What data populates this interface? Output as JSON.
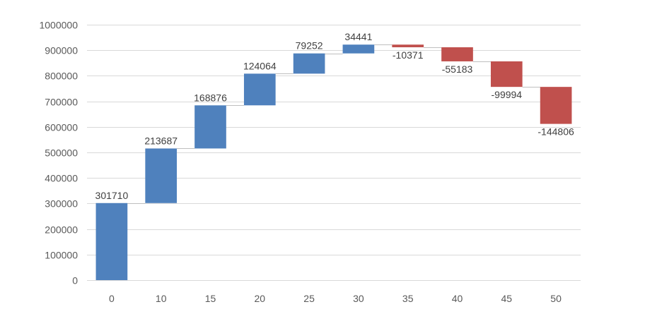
{
  "chart_data": {
    "type": "bar",
    "subtype": "waterfall",
    "title": "",
    "xlabel": "",
    "ylabel": "",
    "categories": [
      "0",
      "10",
      "15",
      "20",
      "25",
      "30",
      "35",
      "40",
      "45",
      "50"
    ],
    "values": [
      301710,
      213687,
      168876,
      124064,
      79252,
      34441,
      -10371,
      -55183,
      -99994,
      -144806
    ],
    "data_labels": [
      "301710",
      "213687",
      "168876",
      "124064",
      "79252",
      "34441",
      "-10371",
      "-55183",
      "-99994",
      "-144806"
    ],
    "ylim": [
      0,
      1000000
    ],
    "yticks": [
      0,
      100000,
      200000,
      300000,
      400000,
      500000,
      600000,
      700000,
      800000,
      900000,
      1000000
    ],
    "ytick_labels": [
      "0",
      "100000",
      "200000",
      "300000",
      "400000",
      "500000",
      "600000",
      "700000",
      "800000",
      "900000",
      "1000000"
    ],
    "grid": true,
    "legend": "none",
    "colors": {
      "increase": "#4f81bd",
      "decrease": "#c0504d",
      "grid": "#d9d9d9",
      "connector": "#bfbfbf",
      "text": "#595959"
    }
  }
}
